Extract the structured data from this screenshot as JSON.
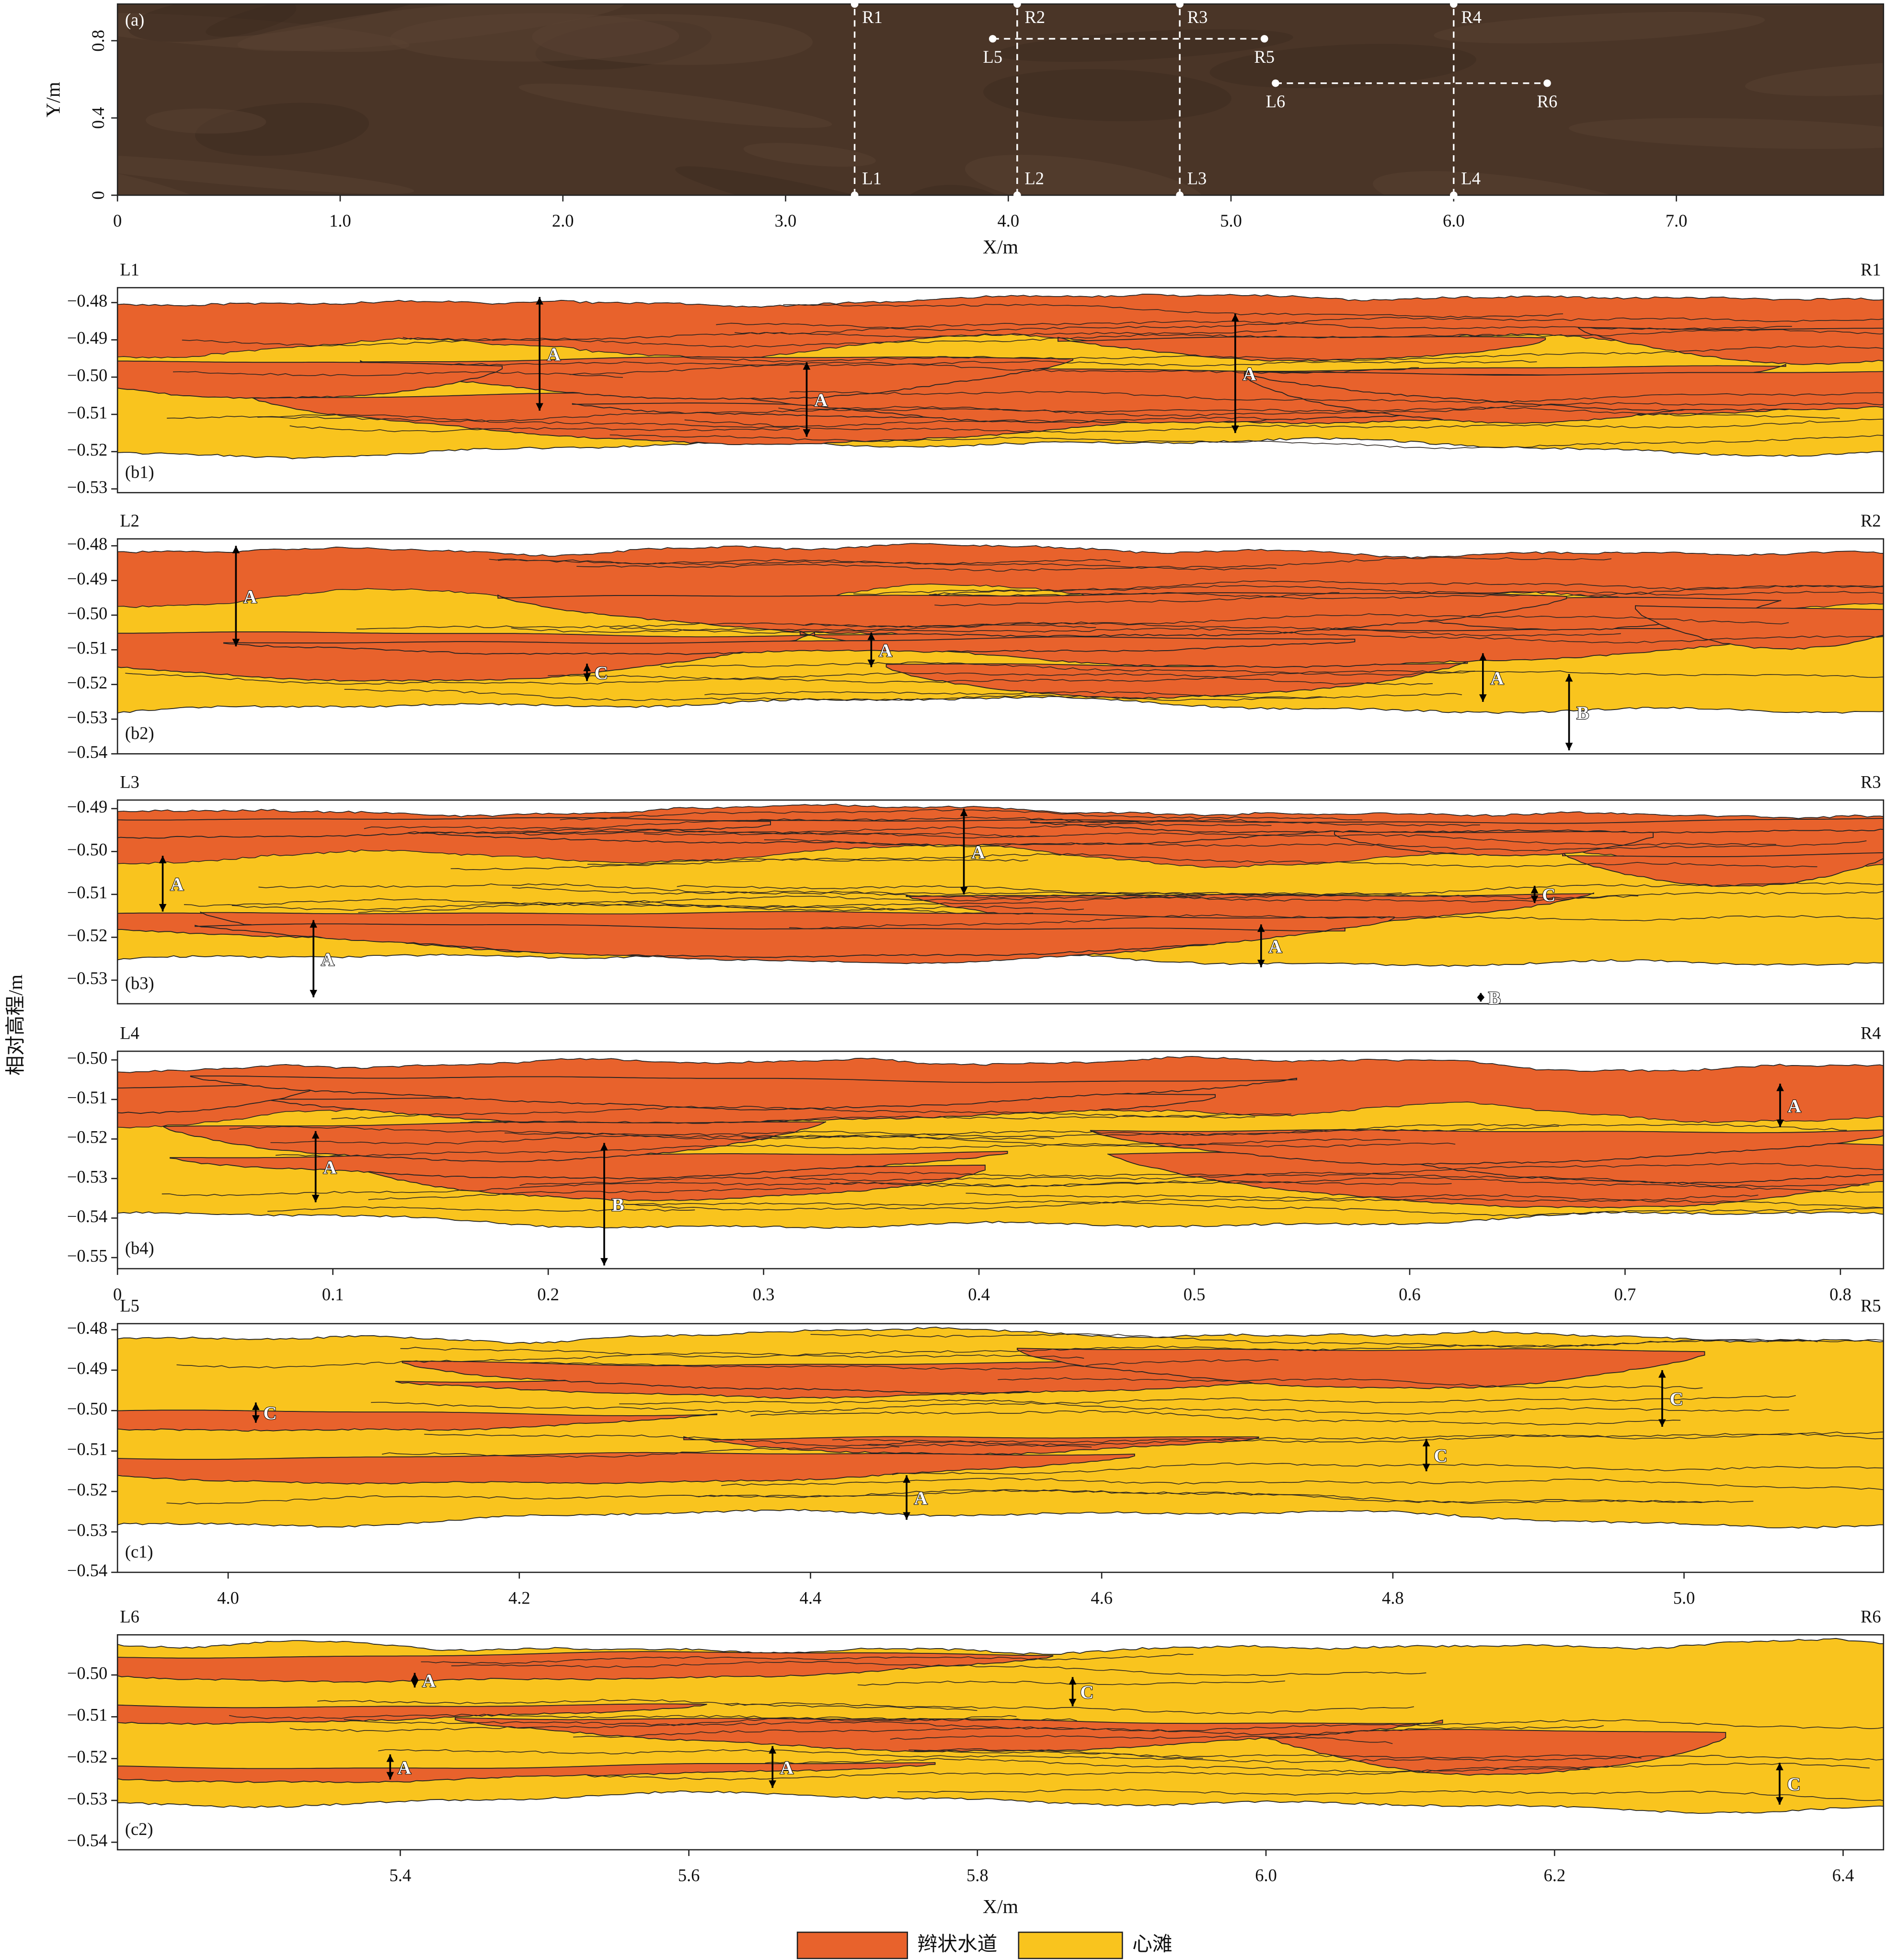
{
  "shared_ylabel": "相对高程/m",
  "legend": [
    {
      "name": "辫状水道",
      "color": "#e8622c"
    },
    {
      "name": "心滩",
      "color": "#f9c41e"
    }
  ],
  "chart_data": [
    {
      "type": "map",
      "panel_label": "(a)",
      "xlabel": "X/m",
      "ylabel": "Y/m",
      "xlim": [
        0,
        7.93
      ],
      "ylim": [
        0,
        0.99
      ],
      "xticks": [
        0,
        {
          "value": 1,
          "label": "1.0"
        },
        {
          "value": 2,
          "label": "2.0"
        },
        {
          "value": 3,
          "label": "3.0"
        },
        {
          "value": 4,
          "label": "4.0"
        },
        {
          "value": 5,
          "label": "5.0"
        },
        {
          "value": 6,
          "label": "6.0"
        },
        {
          "value": 7,
          "label": "7.0"
        }
      ],
      "yticks": [
        0,
        0.4,
        0.8
      ],
      "sections": [
        {
          "start": "L1",
          "end": "R1",
          "x": [
            3.31,
            3.31
          ],
          "y": [
            0,
            0.99
          ]
        },
        {
          "start": "L2",
          "end": "R2",
          "x": [
            4.04,
            4.04
          ],
          "y": [
            0,
            0.99
          ]
        },
        {
          "start": "L3",
          "end": "R3",
          "x": [
            4.77,
            4.77
          ],
          "y": [
            0,
            0.99
          ]
        },
        {
          "start": "L4",
          "end": "R4",
          "x": [
            6.0,
            6.0
          ],
          "y": [
            0,
            0.99
          ]
        },
        {
          "start": "L5",
          "end": "R5",
          "x": [
            3.93,
            5.15
          ],
          "y": [
            0.81,
            0.81
          ]
        },
        {
          "start": "L6",
          "end": "R6",
          "x": [
            5.2,
            6.42
          ],
          "y": [
            0.58,
            0.58
          ]
        }
      ]
    },
    {
      "type": "section",
      "panel_label": "(b1)",
      "left_label": "L1",
      "right_label": "R1",
      "xlim": [
        0,
        0.82
      ],
      "ylim": [
        -0.531,
        -0.476
      ],
      "yticks": [
        {
          "value": -0.48,
          "label": "−0.48"
        },
        {
          "value": -0.49,
          "label": "−0.49"
        },
        {
          "value": -0.5,
          "label": "−0.50"
        },
        {
          "value": -0.51,
          "label": "−0.51"
        },
        {
          "value": -0.52,
          "label": "−0.52"
        },
        {
          "value": -0.53,
          "label": "−0.53"
        }
      ],
      "annotations": [
        {
          "label": "A",
          "x": 0.196,
          "y": [
            -0.4785,
            -0.509
          ]
        },
        {
          "label": "A",
          "x": 0.32,
          "y": [
            -0.496,
            -0.516
          ]
        },
        {
          "label": "A",
          "x": 0.519,
          "y": [
            -0.483,
            -0.515
          ]
        }
      ]
    },
    {
      "type": "section",
      "panel_label": "(b2)",
      "left_label": "L2",
      "right_label": "R2",
      "xlim": [
        0,
        0.82
      ],
      "ylim": [
        -0.54,
        -0.478
      ],
      "yticks": [
        {
          "value": -0.48,
          "label": "−0.48"
        },
        {
          "value": -0.49,
          "label": "−0.49"
        },
        {
          "value": -0.5,
          "label": "−0.50"
        },
        {
          "value": -0.51,
          "label": "−0.51"
        },
        {
          "value": -0.52,
          "label": "−0.52"
        },
        {
          "value": -0.53,
          "label": "−0.53"
        },
        {
          "value": -0.54,
          "label": "−0.54"
        }
      ],
      "annotations": [
        {
          "label": "A",
          "x": 0.055,
          "y": [
            -0.48,
            -0.509
          ]
        },
        {
          "label": "C",
          "x": 0.218,
          "y": [
            -0.514,
            -0.519
          ]
        },
        {
          "label": "A",
          "x": 0.35,
          "y": [
            -0.505,
            -0.515
          ]
        },
        {
          "label": "A",
          "x": 0.634,
          "y": [
            -0.511,
            -0.525
          ]
        },
        {
          "label": "B",
          "x": 0.674,
          "y": [
            -0.517,
            -0.539
          ]
        }
      ]
    },
    {
      "type": "section",
      "panel_label": "(b3)",
      "left_label": "L3",
      "right_label": "R3",
      "xlim": [
        0,
        0.82
      ],
      "ylim": [
        -0.5355,
        -0.488
      ],
      "yticks": [
        {
          "value": -0.49,
          "label": "−0.49"
        },
        {
          "value": -0.5,
          "label": "−0.50"
        },
        {
          "value": -0.51,
          "label": "−0.51"
        },
        {
          "value": -0.52,
          "label": "−0.52"
        },
        {
          "value": -0.53,
          "label": "−0.53"
        }
      ],
      "annotations": [
        {
          "label": "A",
          "x": 0.021,
          "y": [
            -0.501,
            -0.514
          ]
        },
        {
          "label": "A",
          "x": 0.393,
          "y": [
            -0.49,
            -0.51
          ]
        },
        {
          "label": "C",
          "x": 0.658,
          "y": [
            -0.508,
            -0.512
          ]
        },
        {
          "label": "A",
          "x": 0.531,
          "y": [
            -0.517,
            -0.527
          ]
        },
        {
          "label": "A",
          "x": 0.091,
          "y": [
            -0.516,
            -0.534
          ]
        },
        {
          "label": "B",
          "x": 0.633,
          "y": [
            -0.533,
            -0.535
          ]
        }
      ]
    },
    {
      "type": "section",
      "panel_label": "(b4)",
      "left_label": "L4",
      "right_label": "R4",
      "xlim": [
        0,
        0.82
      ],
      "ylim": [
        -0.5528,
        -0.4978
      ],
      "xticks": [
        0,
        0.1,
        0.2,
        0.3,
        0.4,
        0.5,
        0.6,
        0.7,
        0.8
      ],
      "yticks": [
        {
          "value": -0.5,
          "label": "−0.50"
        },
        {
          "value": -0.51,
          "label": "−0.51"
        },
        {
          "value": -0.52,
          "label": "−0.52"
        },
        {
          "value": -0.53,
          "label": "−0.53"
        },
        {
          "value": -0.54,
          "label": "−0.54"
        },
        {
          "value": -0.55,
          "label": "−0.55"
        }
      ],
      "annotations": [
        {
          "label": "A",
          "x": 0.772,
          "y": [
            -0.506,
            -0.517
          ]
        },
        {
          "label": "A",
          "x": 0.092,
          "y": [
            -0.518,
            -0.536
          ]
        },
        {
          "label": "B",
          "x": 0.226,
          "y": [
            -0.521,
            -0.552
          ]
        }
      ]
    },
    {
      "type": "section",
      "panel_label": "(c1)",
      "left_label": "L5",
      "right_label": "R5",
      "xlim": [
        3.924,
        5.137
      ],
      "ylim": [
        -0.54,
        -0.4785
      ],
      "xticks": [
        {
          "value": 4,
          "label": "4.0"
        },
        4.2,
        4.4,
        4.6,
        4.8,
        {
          "value": 5,
          "label": "5.0"
        }
      ],
      "yticks": [
        {
          "value": -0.48,
          "label": "−0.48"
        },
        {
          "value": -0.49,
          "label": "−0.49"
        },
        {
          "value": -0.5,
          "label": "−0.50"
        },
        {
          "value": -0.51,
          "label": "−0.51"
        },
        {
          "value": -0.52,
          "label": "−0.52"
        },
        {
          "value": -0.53,
          "label": "−0.53"
        },
        {
          "value": -0.54,
          "label": "−0.54"
        }
      ],
      "annotations": [
        {
          "label": "C",
          "x": 4.019,
          "y": [
            -0.498,
            -0.503
          ]
        },
        {
          "label": "C",
          "x": 4.823,
          "y": [
            -0.507,
            -0.515
          ]
        },
        {
          "label": "C",
          "x": 4.985,
          "y": [
            -0.49,
            -0.504
          ]
        },
        {
          "label": "A",
          "x": 4.466,
          "y": [
            -0.516,
            -0.527
          ]
        }
      ]
    },
    {
      "type": "section",
      "panel_label": "(c2)",
      "left_label": "L6",
      "right_label": "R6",
      "xlabel": "X/m",
      "xlim": [
        5.204,
        6.428
      ],
      "ylim": [
        -0.5418,
        -0.4904
      ],
      "xticks": [
        5.4,
        5.6,
        5.8,
        {
          "value": 6,
          "label": "6.0"
        },
        6.2,
        6.4
      ],
      "yticks": [
        {
          "value": -0.5,
          "label": "−0.50"
        },
        {
          "value": -0.51,
          "label": "−0.51"
        },
        {
          "value": -0.52,
          "label": "−0.52"
        },
        {
          "value": -0.53,
          "label": "−0.53"
        },
        {
          "value": -0.54,
          "label": "−0.54"
        }
      ],
      "annotations": [
        {
          "label": "A",
          "x": 5.41,
          "y": [
            -0.4995,
            -0.503
          ]
        },
        {
          "label": "C",
          "x": 5.866,
          "y": [
            -0.5005,
            -0.5075
          ]
        },
        {
          "label": "A",
          "x": 5.393,
          "y": [
            -0.519,
            -0.525
          ]
        },
        {
          "label": "A",
          "x": 5.658,
          "y": [
            -0.517,
            -0.527
          ]
        },
        {
          "label": "C",
          "x": 6.356,
          "y": [
            -0.521,
            -0.531
          ]
        }
      ]
    }
  ]
}
